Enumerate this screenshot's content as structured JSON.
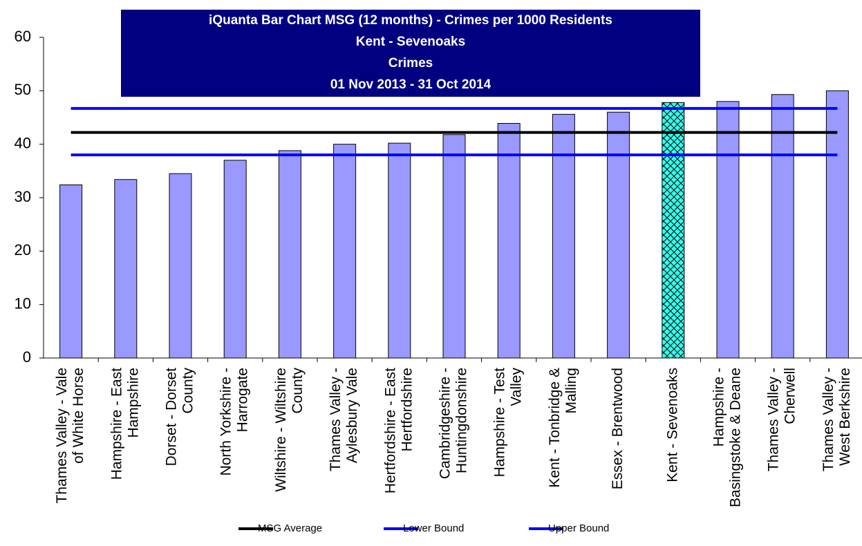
{
  "chart_data": {
    "type": "bar",
    "title": [
      "iQuanta Bar Chart MSG (12 months) - Crimes per 1000 Residents",
      "Kent - Sevenoaks",
      "Crimes",
      "01 Nov 2013 - 31 Oct 2014"
    ],
    "categories": [
      [
        "Thames Valley - Vale",
        "of White Horse"
      ],
      [
        "Hampshire - East",
        "Hampshire"
      ],
      [
        "Dorset - Dorset",
        "County"
      ],
      [
        "North Yorkshire -",
        "Harrogate"
      ],
      [
        "Wiltshire - Wiltshire",
        "County"
      ],
      [
        "Thames Valley -",
        "Aylesbury Vale"
      ],
      [
        "Hertfordshire - East",
        "Hertfordshire"
      ],
      [
        "Cambridgeshire -",
        "Huntingdonshire"
      ],
      [
        "Hampshire - Test",
        "Valley"
      ],
      [
        "Kent - Tonbridge &",
        "Malling"
      ],
      [
        "Essex - Brentwood"
      ],
      [
        "Kent - Sevenoaks"
      ],
      [
        "Hampshire -",
        "Basingstoke & Deane"
      ],
      [
        "Thames Valley -",
        "Cherwell"
      ],
      [
        "Thames Valley -",
        "West Berkshire"
      ]
    ],
    "values": [
      32.4,
      33.4,
      34.5,
      37.0,
      38.8,
      40.0,
      40.2,
      41.8,
      43.9,
      45.6,
      46.0,
      47.8,
      48.0,
      49.3,
      50.0
    ],
    "bar_colors": [
      "#9999ff",
      "#9999ff",
      "#9999ff",
      "#9999ff",
      "#9999ff",
      "#9999ff",
      "#9999ff",
      "#9999ff",
      "#9999ff",
      "#9999ff",
      "#9999ff",
      "#33ffee",
      "#9999ff",
      "#9999ff",
      "#9999ff"
    ],
    "lines": [
      {
        "name": "MSG Average",
        "color": "#000000",
        "values": [
          42.2,
          42.2,
          42.2,
          42.2,
          42.2,
          42.2,
          42.2,
          42.2,
          42.2,
          42.2,
          42.2,
          42.2,
          42.2,
          42.2,
          42.2
        ]
      },
      {
        "name": "Lower Bound",
        "color": "#0000ff",
        "values": [
          38.0,
          38.0,
          38.0,
          38.0,
          38.0,
          38.0,
          38.0,
          38.0,
          38.0,
          38.0,
          38.0,
          38.0,
          38.0,
          38.0,
          38.0
        ]
      },
      {
        "name": "Upper Bound",
        "color": "#0000ff",
        "values": [
          46.7,
          46.7,
          46.7,
          46.7,
          46.7,
          46.7,
          46.7,
          46.7,
          46.7,
          46.7,
          46.7,
          46.7,
          46.7,
          46.7,
          46.7
        ]
      }
    ],
    "ylim": [
      0,
      60
    ],
    "yticks": [
      0,
      10,
      20,
      30,
      40,
      50,
      60
    ],
    "grid": false
  }
}
